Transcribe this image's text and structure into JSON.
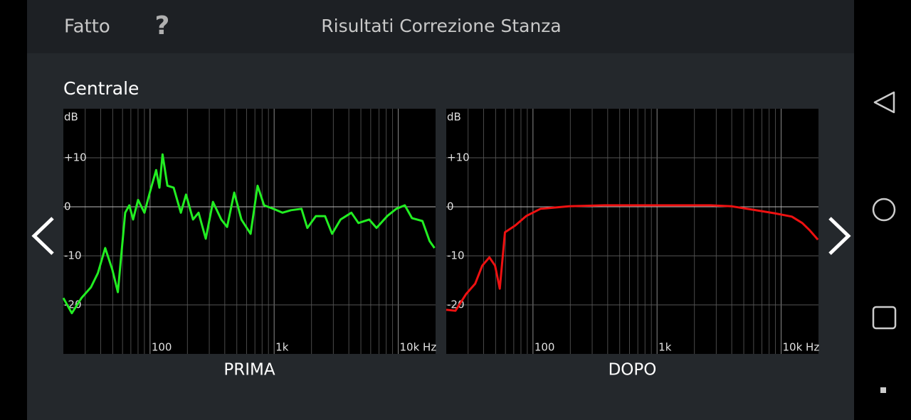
{
  "header": {
    "done": "Fatto",
    "help": "?",
    "title": "Risultati Correzione Stanza"
  },
  "section_title": "Centrale",
  "chart_data": [
    {
      "type": "line",
      "title": "PRIMA",
      "y_label": "dB",
      "x_scale": "log",
      "grid": true,
      "color": "#22ee22",
      "xlim": [
        20,
        20000
      ],
      "ylim": [
        -30,
        20
      ],
      "xticks": [
        100,
        {
          "value": 1000,
          "label": "1k"
        },
        {
          "value": 10000,
          "label": "10k Hz"
        }
      ],
      "xgrid": [
        30,
        40,
        50,
        60,
        70,
        80,
        90,
        200,
        300,
        400,
        500,
        600,
        700,
        800,
        900,
        2000,
        3000,
        4000,
        5000,
        6000,
        7000,
        8000,
        9000
      ],
      "yticks": [
        {
          "value": 10,
          "label": "+10"
        },
        0,
        -10,
        -20
      ],
      "x": [
        20,
        23.4,
        28,
        33.4,
        38,
        43.5,
        49.6,
        55,
        63,
        68,
        73,
        80,
        90,
        101,
        112,
        119,
        126,
        138,
        155,
        177,
        195,
        222,
        246,
        281,
        321,
        375,
        418,
        477,
        545,
        646,
        735,
        829,
        985,
        1166,
        1366,
        1660,
        1850,
        2170,
        2570,
        2930,
        3430,
        4190,
        4780,
        5830,
        6680,
        8150,
        9650,
        11300,
        12900,
        15660,
        17900,
        19600
      ],
      "values": [
        -18.6,
        -21.7,
        -18.6,
        -16.4,
        -13.5,
        -8.4,
        -12.8,
        -17.4,
        -1.2,
        0.3,
        -2.6,
        1.4,
        -1.2,
        3.5,
        7.5,
        3.9,
        10.7,
        4.3,
        3.9,
        -1.2,
        2.5,
        -2.6,
        -1.2,
        -6.5,
        1.0,
        -2.6,
        -4.1,
        2.9,
        -2.6,
        -5.5,
        4.3,
        0.3,
        -0.4,
        -1.2,
        -0.7,
        -0.4,
        -4.3,
        -1.9,
        -1.9,
        -5.5,
        -2.6,
        -1.2,
        -3.3,
        -2.6,
        -4.3,
        -1.9,
        -0.4,
        0.3,
        -2.3,
        -2.9,
        -7.0,
        -8.4
      ]
    },
    {
      "type": "line",
      "title": "DOPO",
      "y_label": "dB",
      "x_scale": "log",
      "grid": true,
      "color": "#ee1111",
      "xlim": [
        20,
        20000
      ],
      "ylim": [
        -30,
        20
      ],
      "xticks": [
        100,
        {
          "value": 1000,
          "label": "1k"
        },
        {
          "value": 10000,
          "label": "10k Hz"
        }
      ],
      "xgrid": [
        30,
        40,
        50,
        60,
        70,
        80,
        90,
        200,
        300,
        400,
        500,
        600,
        700,
        800,
        900,
        2000,
        3000,
        4000,
        5000,
        6000,
        7000,
        8000,
        9000
      ],
      "yticks": [
        {
          "value": 10,
          "label": "+10"
        },
        0,
        -10,
        -20
      ],
      "x": [
        20,
        23.7,
        28.9,
        34.2,
        39,
        44.5,
        49.5,
        54,
        59.5,
        72,
        88,
        115,
        195,
        375,
        940,
        2700,
        4000,
        5930,
        8800,
        12200,
        14800,
        17000,
        19800
      ],
      "values": [
        -21,
        -21.2,
        -17.8,
        -15.7,
        -12,
        -10.3,
        -12,
        -16.7,
        -5.2,
        -3.8,
        -1.9,
        -0.4,
        0.1,
        0.3,
        0.3,
        0.3,
        0.1,
        -0.6,
        -1.3,
        -2,
        -3.3,
        -4.8,
        -6.7
      ]
    }
  ]
}
